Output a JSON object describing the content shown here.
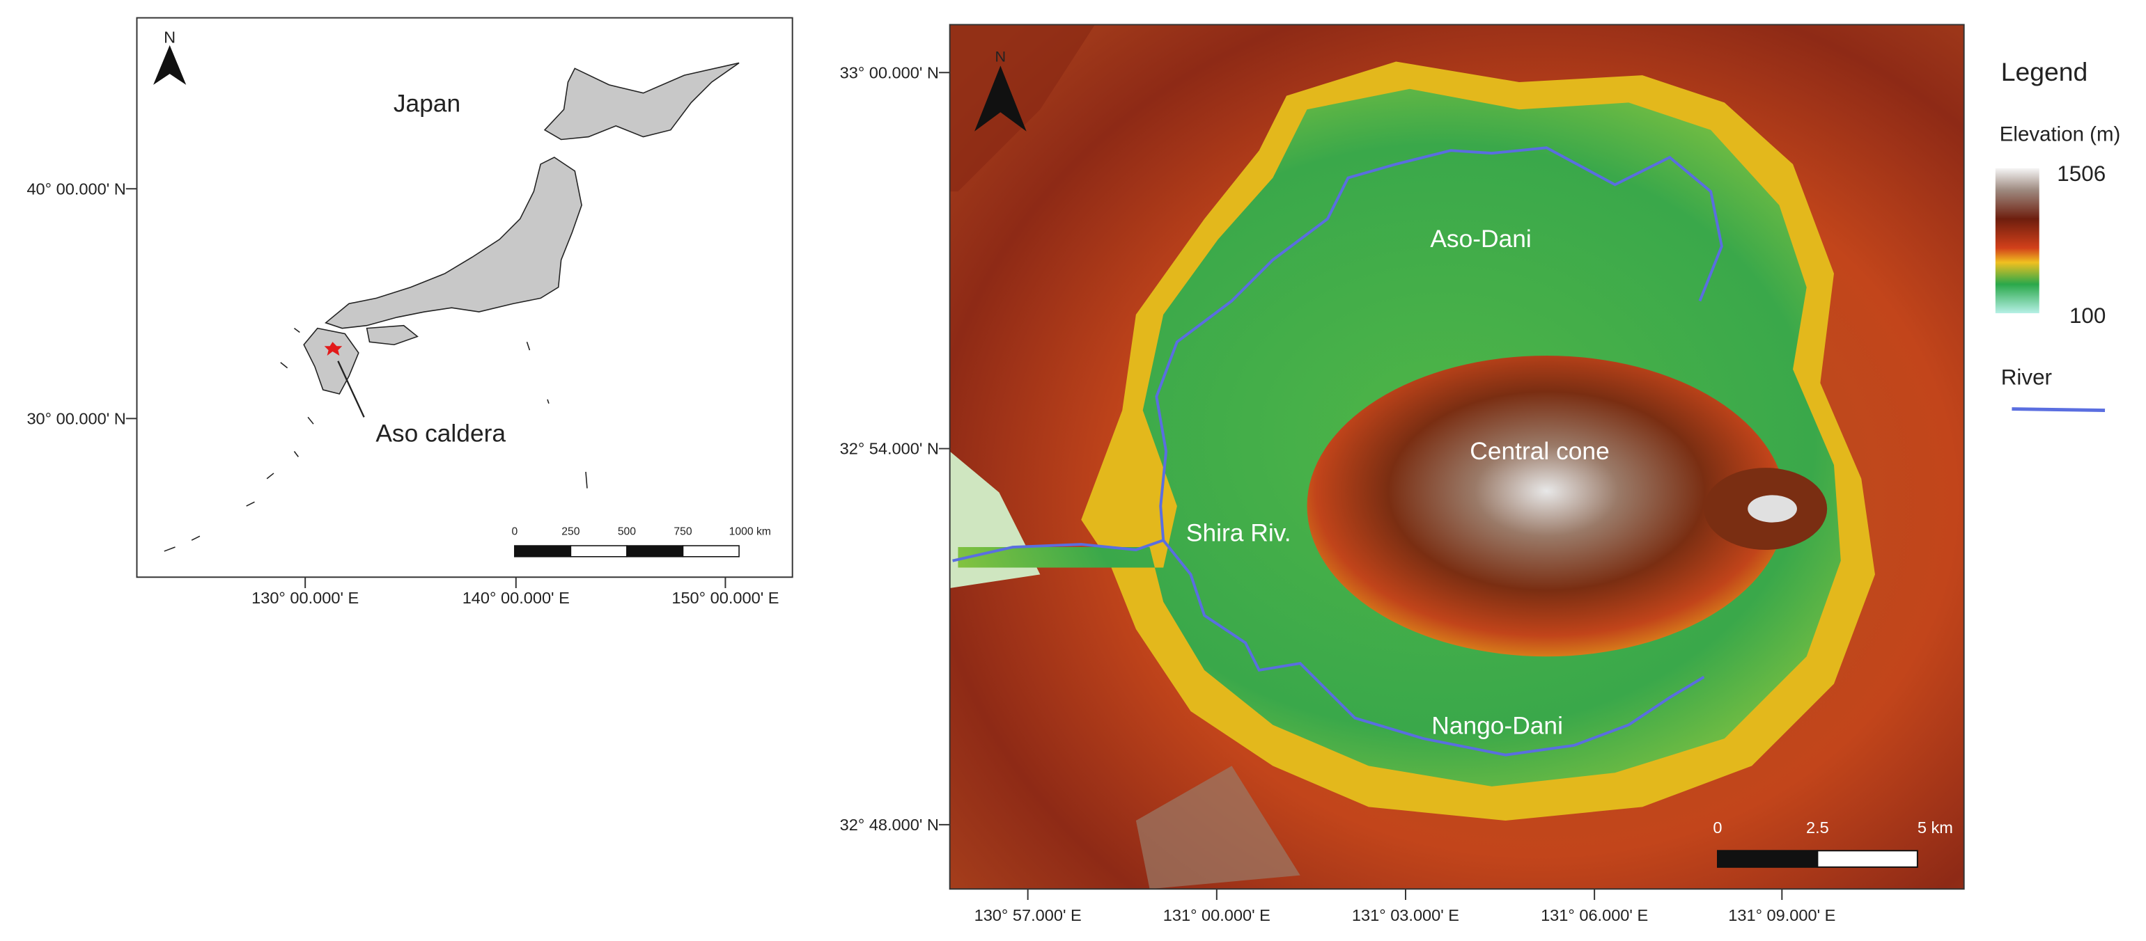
{
  "japan_map": {
    "north": "N",
    "title": "Japan",
    "annotation": "Aso caldera",
    "lat_labels": [
      "40° 00.000' N",
      "30° 00.000' N"
    ],
    "lon_labels": [
      "130° 00.000' E",
      "140° 00.000' E",
      "150° 00.000' E"
    ],
    "scale_labels": [
      "0",
      "250",
      "500",
      "750",
      "1000 km"
    ]
  },
  "aso_map": {
    "north": "N",
    "lat_labels": [
      "33° 00.000' N",
      "32° 54.000' N",
      "32° 48.000' N"
    ],
    "lon_labels": [
      "130° 57.000' E",
      "131° 00.000' E",
      "131° 03.000' E",
      "131° 06.000' E",
      "131° 09.000' E"
    ],
    "place_labels": [
      "Aso-Dani",
      "Central cone",
      "Shira Riv.",
      "Nango-Dani"
    ],
    "scale_labels": [
      "0",
      "2.5",
      "5 km"
    ]
  },
  "legend": {
    "title": "Legend",
    "elevation_title": "Elevation (m)",
    "elevation_max": "1506",
    "elevation_min": "100",
    "river": "River"
  }
}
